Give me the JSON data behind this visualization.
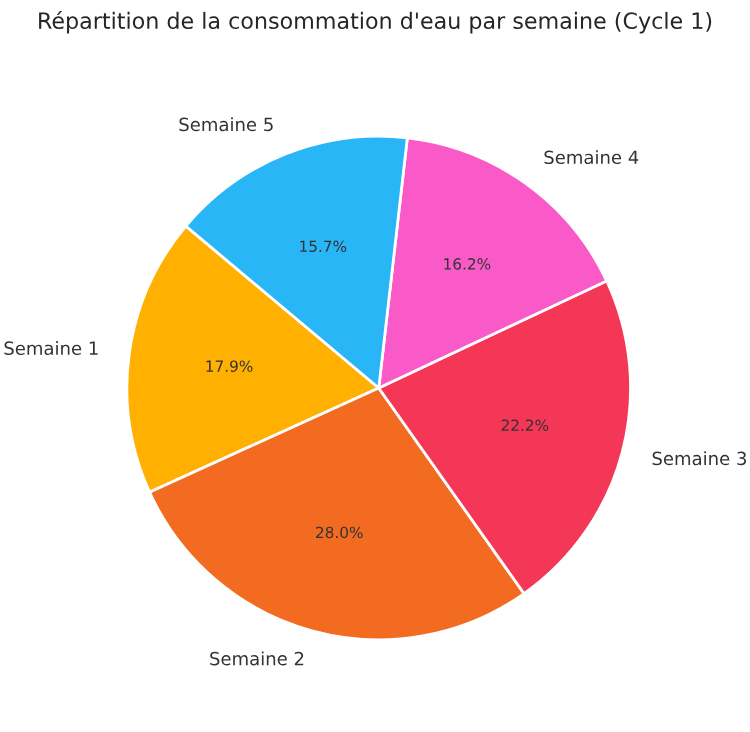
{
  "chart_data": {
    "type": "pie",
    "title": "Répartition de la consommation d'eau par semaine (Cycle 1)",
    "categories": [
      "Semaine 1",
      "Semaine 2",
      "Semaine 3",
      "Semaine 4",
      "Semaine 5"
    ],
    "values": [
      17.9,
      28.0,
      22.2,
      16.2,
      15.7
    ],
    "colors": [
      "#ffb000",
      "#f26b21",
      "#f43657",
      "#f95ac8",
      "#29b6f6"
    ],
    "value_labels": [
      "17.9%",
      "28.0%",
      "22.2%",
      "16.2%",
      "15.7%"
    ]
  }
}
